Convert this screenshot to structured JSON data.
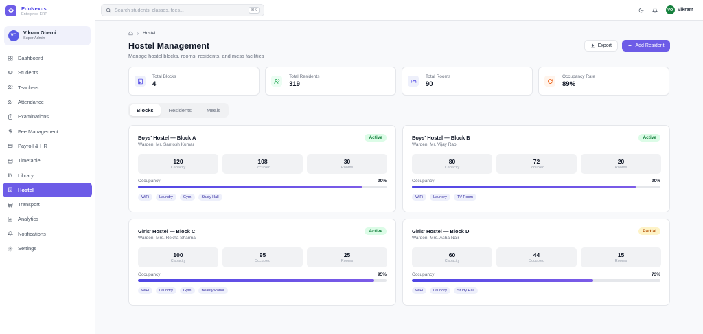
{
  "brand": {
    "name": "EduNexus",
    "subtitle": "Enterprise ERP"
  },
  "user": {
    "initials": "VO",
    "name": "Vikram Oberoi",
    "role": "Super Admin"
  },
  "sidebar": {
    "items": [
      {
        "label": "Dashboard",
        "icon": "dashboard-icon"
      },
      {
        "label": "Students",
        "icon": "graduation-cap-icon"
      },
      {
        "label": "Teachers",
        "icon": "users-icon"
      },
      {
        "label": "Attendance",
        "icon": "user-check-icon"
      },
      {
        "label": "Examinations",
        "icon": "clipboard-icon"
      },
      {
        "label": "Fee Management",
        "icon": "dollar-icon"
      },
      {
        "label": "Payroll & HR",
        "icon": "wallet-icon"
      },
      {
        "label": "Timetable",
        "icon": "calendar-icon"
      },
      {
        "label": "Library",
        "icon": "library-icon"
      },
      {
        "label": "Hostel",
        "icon": "building-icon",
        "active": true
      },
      {
        "label": "Transport",
        "icon": "bus-icon"
      },
      {
        "label": "Analytics",
        "icon": "chart-icon"
      },
      {
        "label": "Notifications",
        "icon": "bell-icon"
      },
      {
        "label": "Settings",
        "icon": "gear-icon"
      }
    ]
  },
  "search": {
    "placeholder": "Search students, classes, fees...",
    "shortcut": "⌘K"
  },
  "topbar": {
    "user_initials": "VO",
    "user_name": "Vikram"
  },
  "breadcrumb": {
    "current": "Hostel"
  },
  "page": {
    "title": "Hostel Management",
    "subtitle": "Manage hostel blocks, rooms, residents, and mess facilities"
  },
  "actions": {
    "export_label": "Export",
    "add_label": "Add Resident"
  },
  "stats": [
    {
      "label": "Total Blocks",
      "value": "4",
      "color": "#4f46e5",
      "bg": "#eef0fb"
    },
    {
      "label": "Total Residents",
      "value": "319",
      "color": "#16a34a",
      "bg": "#ecfdf3"
    },
    {
      "label": "Total Rooms",
      "value": "90",
      "color": "#4f46e5",
      "bg": "#eef0fb"
    },
    {
      "label": "Occupancy Rate",
      "value": "89%",
      "color": "#ea580c",
      "bg": "#fff4ec"
    }
  ],
  "tabs": [
    "Blocks",
    "Residents",
    "Meals"
  ],
  "blocks": [
    {
      "name": "Boys' Hostel — Block A",
      "warden": "Warden: Mr. Santosh Kumar",
      "status": "Active",
      "capacity": "120",
      "occupied": "108",
      "rooms": "30",
      "occupancy": "90%",
      "occupancy_value": 90,
      "amenities": [
        "WiFi",
        "Laundry",
        "Gym",
        "Study Hall"
      ]
    },
    {
      "name": "Boys' Hostel — Block B",
      "warden": "Warden: Mr. Vijay Rao",
      "status": "Active",
      "capacity": "80",
      "occupied": "72",
      "rooms": "20",
      "occupancy": "90%",
      "occupancy_value": 90,
      "amenities": [
        "WiFi",
        "Laundry",
        "TV Room"
      ]
    },
    {
      "name": "Girls' Hostel — Block C",
      "warden": "Warden: Mrs. Rekha Sharma",
      "status": "Active",
      "capacity": "100",
      "occupied": "95",
      "rooms": "25",
      "occupancy": "95%",
      "occupancy_value": 95,
      "amenities": [
        "WiFi",
        "Laundry",
        "Gym",
        "Beauty Parlor"
      ]
    },
    {
      "name": "Girls' Hostel — Block D",
      "warden": "Warden: Mrs. Asha Nair",
      "status": "Partial",
      "capacity": "60",
      "occupied": "44",
      "rooms": "15",
      "occupancy": "73%",
      "occupancy_value": 73,
      "amenities": [
        "WiFi",
        "Laundry",
        "Study Hall"
      ]
    }
  ],
  "labels": {
    "capacity": "Capacity",
    "occupied": "Occupied",
    "rooms": "Rooms",
    "occupancy": "Occupancy"
  }
}
